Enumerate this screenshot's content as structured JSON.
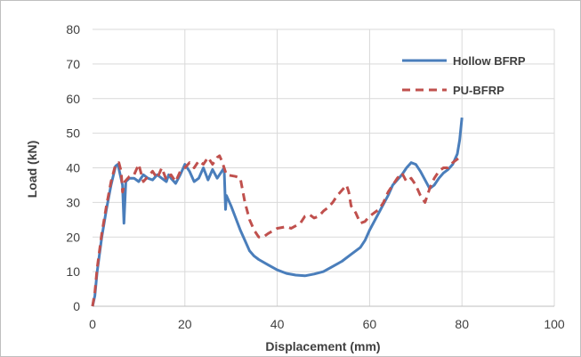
{
  "chart_data": {
    "type": "line",
    "title": "",
    "xlabel": "Displacement (mm)",
    "ylabel": "Load (kN)",
    "xlim": [
      0,
      100
    ],
    "ylim": [
      0,
      80
    ],
    "x_ticks": [
      "0",
      "20",
      "40",
      "60",
      "80",
      "100"
    ],
    "y_ticks": [
      "0",
      "10",
      "20",
      "30",
      "40",
      "50",
      "60",
      "70",
      "80"
    ],
    "grid": true,
    "legend_position": "top-right",
    "series": [
      {
        "name": "Hollow BFRP",
        "color": "#4a7ebb",
        "style": "solid",
        "points": [
          [
            0,
            0
          ],
          [
            0.5,
            3
          ],
          [
            1,
            10
          ],
          [
            2,
            20
          ],
          [
            3,
            28
          ],
          [
            4,
            35
          ],
          [
            5,
            40.5
          ],
          [
            5.5,
            41
          ],
          [
            6,
            38
          ],
          [
            6.5,
            35
          ],
          [
            6.8,
            24
          ],
          [
            7.2,
            36
          ],
          [
            8,
            37
          ],
          [
            9,
            37
          ],
          [
            10,
            36
          ],
          [
            11,
            38
          ],
          [
            12,
            37
          ],
          [
            13,
            36.5
          ],
          [
            14,
            38
          ],
          [
            15,
            37
          ],
          [
            16,
            36
          ],
          [
            16.5,
            38
          ],
          [
            17,
            37
          ],
          [
            18,
            35.5
          ],
          [
            19,
            38
          ],
          [
            20,
            41
          ],
          [
            21,
            39
          ],
          [
            22,
            36
          ],
          [
            23,
            37
          ],
          [
            24,
            40
          ],
          [
            25,
            36.5
          ],
          [
            26,
            39.5
          ],
          [
            27,
            37
          ],
          [
            28,
            39
          ],
          [
            28.5,
            40
          ],
          [
            28.8,
            28
          ],
          [
            29,
            32
          ],
          [
            30,
            29
          ],
          [
            31,
            25.5
          ],
          [
            32,
            22
          ],
          [
            33,
            19
          ],
          [
            34,
            16
          ],
          [
            35,
            14.5
          ],
          [
            36,
            13.5
          ],
          [
            38,
            12
          ],
          [
            40,
            10.5
          ],
          [
            42,
            9.5
          ],
          [
            44,
            9
          ],
          [
            46,
            8.8
          ],
          [
            48,
            9.3
          ],
          [
            50,
            10
          ],
          [
            52,
            11.5
          ],
          [
            54,
            13
          ],
          [
            56,
            15
          ],
          [
            58,
            17
          ],
          [
            59,
            19
          ],
          [
            60,
            22
          ],
          [
            62,
            27
          ],
          [
            64,
            32
          ],
          [
            65,
            35
          ],
          [
            66,
            36.5
          ],
          [
            67,
            38
          ],
          [
            68,
            40
          ],
          [
            69,
            41.5
          ],
          [
            70,
            41
          ],
          [
            71,
            39
          ],
          [
            72,
            36.5
          ],
          [
            73,
            34
          ],
          [
            74,
            35
          ],
          [
            75,
            37
          ],
          [
            76,
            38.5
          ],
          [
            77,
            39.5
          ],
          [
            78,
            41
          ],
          [
            79,
            44
          ],
          [
            79.5,
            48
          ],
          [
            80,
            54.5
          ]
        ]
      },
      {
        "name": "PU-BFRP",
        "color": "#c0504d",
        "style": "dashed",
        "points": [
          [
            0,
            0
          ],
          [
            0.5,
            4
          ],
          [
            1,
            11
          ],
          [
            2,
            21
          ],
          [
            3,
            29
          ],
          [
            4,
            36
          ],
          [
            5,
            41
          ],
          [
            5.7,
            41.5
          ],
          [
            6.2,
            39
          ],
          [
            6.5,
            33
          ],
          [
            7,
            36
          ],
          [
            8,
            37.5
          ],
          [
            9,
            38
          ],
          [
            10,
            41
          ],
          [
            11,
            36
          ],
          [
            12,
            37.5
          ],
          [
            13,
            39
          ],
          [
            14,
            37
          ],
          [
            15,
            40
          ],
          [
            16,
            36.5
          ],
          [
            17,
            38
          ],
          [
            18,
            36
          ],
          [
            19,
            39
          ],
          [
            20,
            40
          ],
          [
            21,
            41.5
          ],
          [
            22,
            40
          ],
          [
            23,
            42
          ],
          [
            24,
            41
          ],
          [
            25,
            43
          ],
          [
            26,
            41
          ],
          [
            27,
            43
          ],
          [
            27.5,
            43.5
          ],
          [
            28,
            42
          ],
          [
            28.5,
            40
          ],
          [
            29,
            38
          ],
          [
            31,
            37.5
          ],
          [
            32,
            37
          ],
          [
            33,
            30
          ],
          [
            34,
            25
          ],
          [
            35,
            22
          ],
          [
            36,
            20
          ],
          [
            37,
            20
          ],
          [
            38,
            21
          ],
          [
            40,
            22.5
          ],
          [
            42,
            23
          ],
          [
            43,
            22.5
          ],
          [
            45,
            24
          ],
          [
            46,
            26
          ],
          [
            47,
            26.5
          ],
          [
            48,
            25.5
          ],
          [
            49,
            26
          ],
          [
            50,
            27.5
          ],
          [
            51,
            28.5
          ],
          [
            52,
            30
          ],
          [
            53,
            32
          ],
          [
            54,
            33.5
          ],
          [
            55,
            35
          ],
          [
            55.5,
            33
          ],
          [
            56,
            29
          ],
          [
            57,
            27
          ],
          [
            58,
            24
          ],
          [
            59,
            24.5
          ],
          [
            60,
            26
          ],
          [
            62,
            28
          ],
          [
            63,
            30
          ],
          [
            64,
            33
          ],
          [
            65,
            35
          ],
          [
            66,
            37
          ],
          [
            67,
            38.5
          ],
          [
            68,
            36
          ],
          [
            69,
            37
          ],
          [
            70,
            35
          ],
          [
            71,
            32
          ],
          [
            72,
            30
          ],
          [
            73,
            34
          ],
          [
            74,
            37
          ],
          [
            75,
            39
          ],
          [
            76,
            40
          ],
          [
            77,
            40
          ],
          [
            78,
            41.5
          ],
          [
            79,
            42.5
          ],
          [
            80,
            43.5
          ]
        ]
      }
    ]
  }
}
